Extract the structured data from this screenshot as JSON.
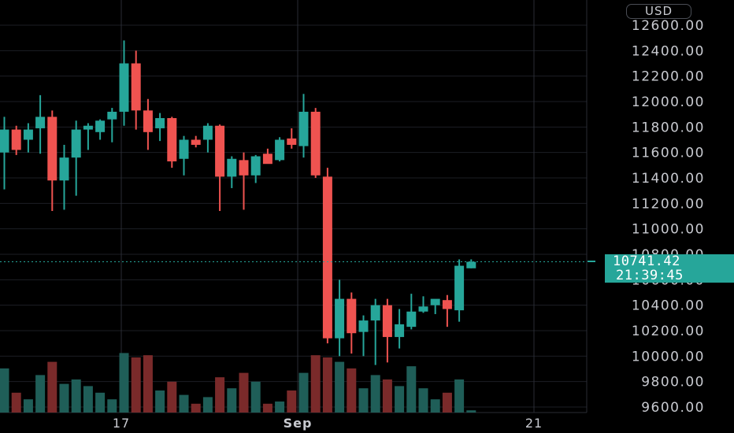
{
  "currency": "USD",
  "last_price": "10741.42",
  "countdown": "21:39:45",
  "colors": {
    "up": "#26a69a",
    "down": "#ef5350",
    "up_volume": "#1f5e58",
    "down_volume": "#7a2a2a",
    "grid": "#1c1e24",
    "axis_text": "#c8cad0"
  },
  "chart_data": {
    "type": "candlestick",
    "title": "",
    "ylim": [
      9570,
      12740
    ],
    "y_ticks": [
      "12600.00",
      "12400.00",
      "12200.00",
      "12000.00",
      "11800.00",
      "11600.00",
      "11400.00",
      "11200.00",
      "11000.00",
      "10800.00",
      "10600.00",
      "10400.00",
      "10200.00",
      "10000.00",
      "9800.00",
      "9600.00"
    ],
    "x_ticks": [
      "17",
      "Sep",
      "21"
    ],
    "grid": true,
    "last_price": 10741.42,
    "candles": [
      {
        "o": 11600,
        "h": 11880,
        "l": 11310,
        "c": 11780,
        "v": 2
      },
      {
        "o": 11780,
        "h": 11810,
        "l": 11580,
        "c": 11620,
        "v": 0.9
      },
      {
        "o": 11700,
        "h": 11830,
        "l": 11600,
        "c": 11780,
        "v": 0.6
      },
      {
        "o": 11790,
        "h": 12050,
        "l": 11590,
        "c": 11880,
        "v": 1.7
      },
      {
        "o": 11880,
        "h": 11930,
        "l": 11140,
        "c": 11380,
        "v": 2.3
      },
      {
        "o": 11380,
        "h": 11660,
        "l": 11150,
        "c": 11560,
        "v": 1.3
      },
      {
        "o": 11560,
        "h": 11850,
        "l": 11260,
        "c": 11780,
        "v": 1.5
      },
      {
        "o": 11780,
        "h": 11830,
        "l": 11620,
        "c": 11810,
        "v": 1.2
      },
      {
        "o": 11760,
        "h": 11860,
        "l": 11700,
        "c": 11850,
        "v": 0.9
      },
      {
        "o": 11860,
        "h": 11950,
        "l": 11680,
        "c": 11920,
        "v": 0.6
      },
      {
        "o": 11920,
        "h": 12480,
        "l": 11810,
        "c": 12300,
        "v": 2.7
      },
      {
        "o": 12300,
        "h": 12400,
        "l": 11780,
        "c": 11930,
        "v": 2.5
      },
      {
        "o": 11930,
        "h": 12020,
        "l": 11620,
        "c": 11760,
        "v": 2.6
      },
      {
        "o": 11790,
        "h": 11910,
        "l": 11690,
        "c": 11870,
        "v": 1.0
      },
      {
        "o": 11870,
        "h": 11880,
        "l": 11480,
        "c": 11530,
        "v": 1.4
      },
      {
        "o": 11550,
        "h": 11730,
        "l": 11420,
        "c": 11700,
        "v": 0.8
      },
      {
        "o": 11700,
        "h": 11730,
        "l": 11640,
        "c": 11660,
        "v": 0.4
      },
      {
        "o": 11700,
        "h": 11830,
        "l": 11600,
        "c": 11810,
        "v": 0.7
      },
      {
        "o": 11810,
        "h": 11820,
        "l": 11140,
        "c": 11410,
        "v": 1.6
      },
      {
        "o": 11410,
        "h": 11570,
        "l": 11320,
        "c": 11550,
        "v": 1.1
      },
      {
        "o": 11540,
        "h": 11600,
        "l": 11150,
        "c": 11420,
        "v": 1.8
      },
      {
        "o": 11420,
        "h": 11580,
        "l": 11360,
        "c": 11570,
        "v": 1.4
      },
      {
        "o": 11590,
        "h": 11630,
        "l": 11520,
        "c": 11510,
        "v": 0.4
      },
      {
        "o": 11540,
        "h": 11720,
        "l": 11530,
        "c": 11700,
        "v": 0.5
      },
      {
        "o": 11710,
        "h": 11790,
        "l": 11630,
        "c": 11660,
        "v": 1.0
      },
      {
        "o": 11650,
        "h": 12060,
        "l": 11560,
        "c": 11920,
        "v": 1.8
      },
      {
        "o": 11920,
        "h": 11950,
        "l": 11400,
        "c": 11420,
        "v": 2.6
      },
      {
        "o": 11410,
        "h": 11480,
        "l": 10100,
        "c": 10140,
        "v": 2.5
      },
      {
        "o": 10140,
        "h": 10600,
        "l": 10000,
        "c": 10450,
        "v": 2.3
      },
      {
        "o": 10450,
        "h": 10500,
        "l": 10020,
        "c": 10180,
        "v": 2.0
      },
      {
        "o": 10190,
        "h": 10320,
        "l": 10000,
        "c": 10280,
        "v": 1.1
      },
      {
        "o": 10280,
        "h": 10450,
        "l": 9930,
        "c": 10400,
        "v": 1.7
      },
      {
        "o": 10400,
        "h": 10450,
        "l": 9950,
        "c": 10150,
        "v": 1.5
      },
      {
        "o": 10150,
        "h": 10370,
        "l": 10060,
        "c": 10250,
        "v": 1.2
      },
      {
        "o": 10230,
        "h": 10490,
        "l": 10210,
        "c": 10350,
        "v": 2.1
      },
      {
        "o": 10350,
        "h": 10470,
        "l": 10340,
        "c": 10390,
        "v": 1.1
      },
      {
        "o": 10400,
        "h": 10440,
        "l": 10330,
        "c": 10450,
        "v": 0.6
      },
      {
        "o": 10440,
        "h": 10480,
        "l": 10230,
        "c": 10370,
        "v": 0.9
      },
      {
        "o": 10360,
        "h": 10760,
        "l": 10270,
        "c": 10710,
        "v": 1.5
      },
      {
        "o": 10690,
        "h": 10760,
        "l": 10690,
        "c": 10741,
        "v": 0.1
      }
    ]
  }
}
